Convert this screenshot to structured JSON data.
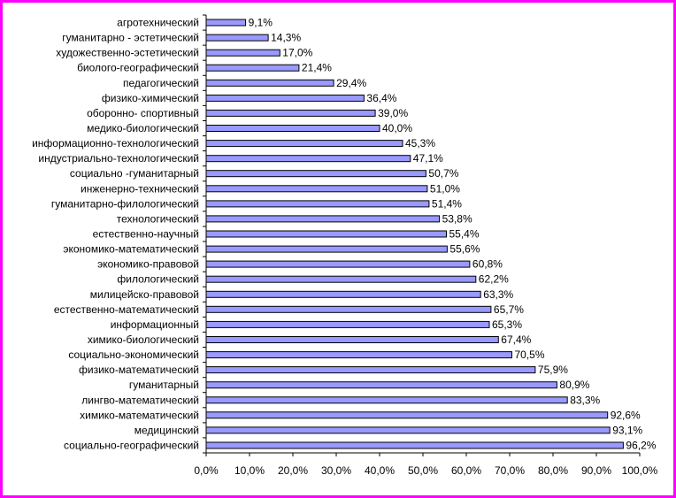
{
  "chart_data": {
    "type": "bar",
    "orientation": "horizontal",
    "categories": [
      "агротехнический",
      "гуманитарно - эстетический",
      "художественно-эстетический",
      "биолого-географический",
      "педагогический",
      "физико-химический",
      "оборонно- спортивный",
      "медико-биологический",
      "информационно-технологический",
      "индустриально-технологический",
      "социально -гуманитарный",
      "инженерно-технический",
      "гуманитарно-филологический",
      "технологический",
      "естественно-научный",
      "экономико-математический",
      "экономико-правовой",
      "филологический",
      "милицейско-правовой",
      "естественно-математический",
      "информационный",
      "химико-биологический",
      "социально-экономический",
      "физико-математический",
      "гуманитарный",
      "лингво-математический",
      "химико-математический",
      "медицинский",
      "социально-географический"
    ],
    "values": [
      9.1,
      14.3,
      17.0,
      21.4,
      29.4,
      36.4,
      39.0,
      40.0,
      45.3,
      47.1,
      50.7,
      51.0,
      51.4,
      53.8,
      55.4,
      55.6,
      60.8,
      62.2,
      63.3,
      65.7,
      65.3,
      67.4,
      70.5,
      75.9,
      80.9,
      83.3,
      92.6,
      93.1,
      96.2
    ],
    "value_labels": [
      "9,1%",
      "14,3%",
      "17,0%",
      "21,4%",
      "29,4%",
      "36,4%",
      "39,0%",
      "40,0%",
      "45,3%",
      "47,1%",
      "50,7%",
      "51,0%",
      "51,4%",
      "53,8%",
      "55,4%",
      "55,6%",
      "60,8%",
      "62,2%",
      "63,3%",
      "65,7%",
      "65,3%",
      "67,4%",
      "70,5%",
      "75,9%",
      "80,9%",
      "83,3%",
      "92,6%",
      "93,1%",
      "96,2%"
    ],
    "xlim": [
      0,
      100
    ],
    "x_ticks": [
      "0,0%",
      "10,0%",
      "20,0%",
      "30,0%",
      "40,0%",
      "50,0%",
      "60,0%",
      "70,0%",
      "80,0%",
      "90,0%",
      "100,0%"
    ],
    "title": "",
    "xlabel": "",
    "ylabel": "",
    "grid": false,
    "legend": "none",
    "colors": {
      "bar_fill": "#9999ff",
      "bar_stroke": "#000000",
      "frame": "#ff00ff",
      "axis": "#000000"
    }
  }
}
